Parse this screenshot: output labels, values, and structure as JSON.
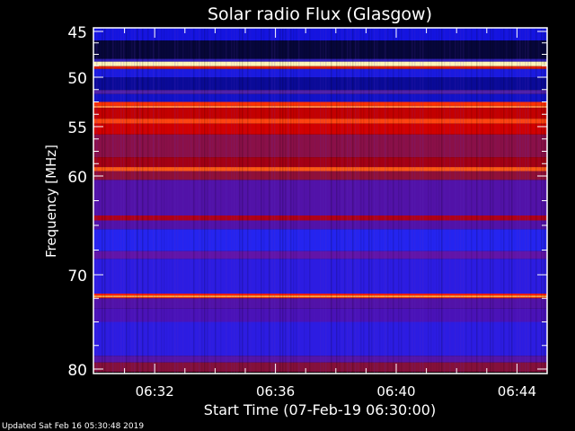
{
  "chart_data": {
    "type": "heatmap",
    "title": "Solar radio Flux (Glasgow)",
    "xlabel": "Start Time (07-Feb-19 06:30:00)",
    "ylabel": "Frequency [MHz]",
    "xlim": [
      "06:30",
      "06:45"
    ],
    "ylim": [
      45,
      80
    ],
    "y_reversed": true,
    "x_ticks": [
      "06:32",
      "06:36",
      "06:40",
      "06:44"
    ],
    "y_ticks": [
      45,
      50,
      55,
      60,
      70,
      80
    ],
    "colormap": "blue-red-yellow-white",
    "bands": [
      {
        "f0": 45.0,
        "f1": 46.0,
        "color": "#1414e0"
      },
      {
        "f0": 46.0,
        "f1": 48.0,
        "color": "#06063a"
      },
      {
        "f0": 48.0,
        "f1": 48.3,
        "color": "#3020b8"
      },
      {
        "f0": 48.3,
        "f1": 48.8,
        "color": "#fff6b8"
      },
      {
        "f0": 48.8,
        "f1": 49.1,
        "color": "#e02000"
      },
      {
        "f0": 49.1,
        "f1": 50.0,
        "color": "#1a1ae0"
      },
      {
        "f0": 50.0,
        "f1": 51.3,
        "color": "#0a0a98"
      },
      {
        "f0": 51.3,
        "f1": 51.7,
        "color": "#5020a8"
      },
      {
        "f0": 51.7,
        "f1": 52.5,
        "color": "#1212c8"
      },
      {
        "f0": 52.5,
        "f1": 52.9,
        "color": "#ff3000"
      },
      {
        "f0": 52.9,
        "f1": 53.1,
        "color": "#ff8040"
      },
      {
        "f0": 53.1,
        "f1": 54.2,
        "color": "#c40000"
      },
      {
        "f0": 54.2,
        "f1": 54.7,
        "color": "#ff4410"
      },
      {
        "f0": 54.7,
        "f1": 55.8,
        "color": "#d20000"
      },
      {
        "f0": 55.8,
        "f1": 58.1,
        "color": "#8a1048"
      },
      {
        "f0": 58.1,
        "f1": 59.1,
        "color": "#a40014"
      },
      {
        "f0": 59.1,
        "f1": 59.5,
        "color": "#ff5a14"
      },
      {
        "f0": 59.5,
        "f1": 60.4,
        "color": "#901038"
      },
      {
        "f0": 60.4,
        "f1": 64.0,
        "color": "#5212a8"
      },
      {
        "f0": 64.0,
        "f1": 64.5,
        "color": "#b00018"
      },
      {
        "f0": 64.5,
        "f1": 65.4,
        "color": "#5212a8"
      },
      {
        "f0": 65.4,
        "f1": 67.6,
        "color": "#2424f0"
      },
      {
        "f0": 67.6,
        "f1": 68.4,
        "color": "#6214a8"
      },
      {
        "f0": 68.4,
        "f1": 72.0,
        "color": "#2c1ce2"
      },
      {
        "f0": 72.0,
        "f1": 72.2,
        "color": "#ff2000"
      },
      {
        "f0": 72.2,
        "f1": 72.4,
        "color": "#ffa040"
      },
      {
        "f0": 72.4,
        "f1": 72.5,
        "color": "#ff2000"
      },
      {
        "f0": 72.5,
        "f1": 73.6,
        "color": "#5212a8"
      },
      {
        "f0": 73.6,
        "f1": 75.0,
        "color": "#4a12b8"
      },
      {
        "f0": 75.0,
        "f1": 78.6,
        "color": "#2c1ce2"
      },
      {
        "f0": 78.6,
        "f1": 79.3,
        "color": "#5414a8"
      },
      {
        "f0": 79.3,
        "f1": 80.3,
        "color": "#84103a"
      }
    ]
  },
  "footer": {
    "updated": "Updated Sat Feb 16 05:30:48 2019"
  }
}
